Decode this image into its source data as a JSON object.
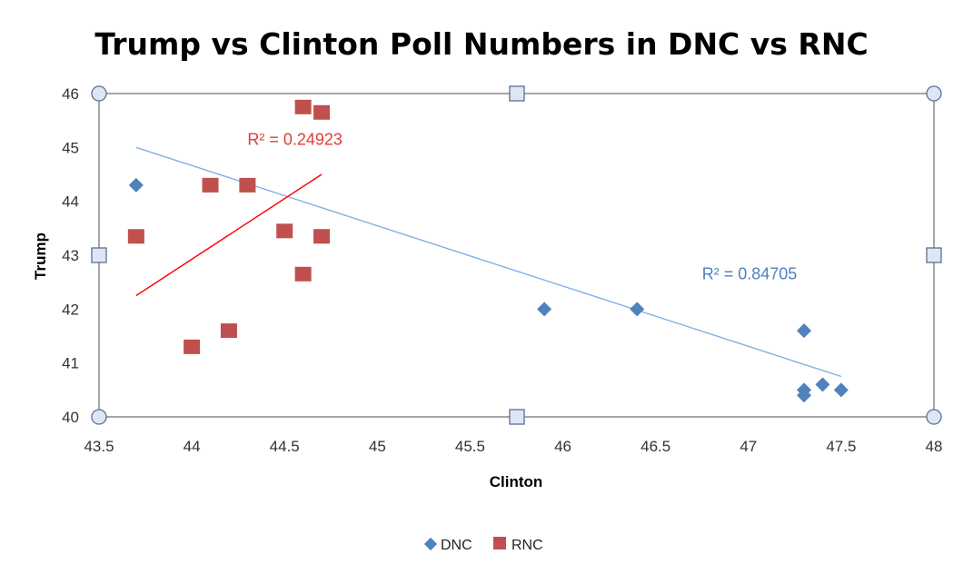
{
  "chart_data": {
    "type": "scatter",
    "title": "Trump vs Clinton Poll Numbers in DNC vs RNC",
    "xlabel": "Clinton",
    "ylabel": "Trump",
    "xlim": [
      43.5,
      48
    ],
    "ylim": [
      40,
      46
    ],
    "xticks": [
      "43.5",
      "44",
      "44.5",
      "45",
      "45.5",
      "46",
      "46.5",
      "47",
      "47.5",
      "48"
    ],
    "yticks": [
      "40",
      "41",
      "42",
      "43",
      "44",
      "45",
      "46"
    ],
    "grid": false,
    "legend_position": "bottom",
    "series": [
      {
        "name": "DNC",
        "marker": "diamond",
        "color": "#4f81bd",
        "points": [
          {
            "x": 43.7,
            "y": 44.3
          },
          {
            "x": 45.9,
            "y": 42.0
          },
          {
            "x": 46.4,
            "y": 42.0
          },
          {
            "x": 47.3,
            "y": 41.6
          },
          {
            "x": 47.3,
            "y": 40.5
          },
          {
            "x": 47.3,
            "y": 40.4
          },
          {
            "x": 47.4,
            "y": 40.6
          },
          {
            "x": 47.5,
            "y": 40.5
          }
        ],
        "trendline": {
          "x": [
            43.7,
            47.5
          ],
          "y": [
            45.0,
            40.75
          ],
          "color": "#7fb0e6"
        },
        "r2_label": "R² = 0.84705"
      },
      {
        "name": "RNC",
        "marker": "square",
        "color": "#c0504d",
        "points": [
          {
            "x": 43.7,
            "y": 43.35
          },
          {
            "x": 44.0,
            "y": 41.3
          },
          {
            "x": 44.1,
            "y": 44.3
          },
          {
            "x": 44.2,
            "y": 41.6
          },
          {
            "x": 44.3,
            "y": 44.3
          },
          {
            "x": 44.5,
            "y": 43.45
          },
          {
            "x": 44.6,
            "y": 42.65
          },
          {
            "x": 44.6,
            "y": 45.75
          },
          {
            "x": 44.7,
            "y": 45.65
          },
          {
            "x": 44.7,
            "y": 43.35
          }
        ],
        "trendline": {
          "x": [
            43.7,
            44.7
          ],
          "y": [
            42.25,
            44.5
          ],
          "color": "#ff0000"
        },
        "r2_label": "R² = 0.24923"
      }
    ]
  }
}
